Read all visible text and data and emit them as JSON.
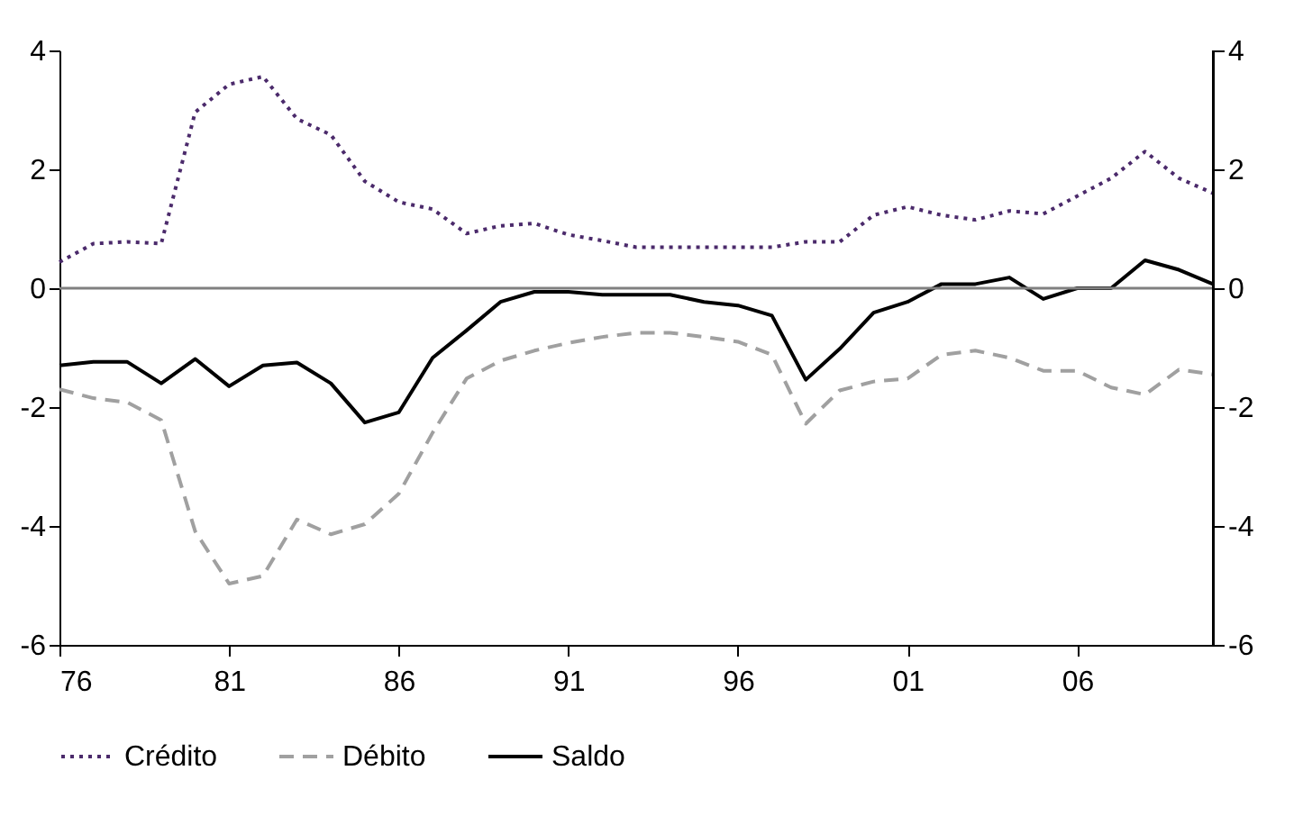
{
  "chart_data": {
    "type": "line",
    "x": [
      1976,
      1977,
      1978,
      1979,
      1980,
      1981,
      1982,
      1983,
      1984,
      1985,
      1986,
      1987,
      1988,
      1989,
      1990,
      1991,
      1992,
      1993,
      1994,
      1995,
      1996,
      1997,
      1998,
      1999,
      2000,
      2001,
      2002,
      2003,
      2004,
      2005,
      2006,
      2007,
      2008,
      2009,
      2010
    ],
    "series": [
      {
        "name": "Crédito",
        "color": "#4b2a6b",
        "line_style": "dotted",
        "values": [
          0.44,
          0.75,
          0.78,
          0.75,
          2.96,
          3.43,
          3.56,
          2.85,
          2.58,
          1.8,
          1.45,
          1.33,
          0.92,
          1.05,
          1.09,
          0.9,
          0.8,
          0.69,
          0.69,
          0.69,
          0.69,
          0.69,
          0.78,
          0.78,
          1.23,
          1.37,
          1.23,
          1.15,
          1.3,
          1.25,
          1.55,
          1.85,
          2.3,
          1.85,
          1.6
        ]
      },
      {
        "name": "Débito",
        "color": "#a0a0a0",
        "line_style": "dashed",
        "values": [
          -1.7,
          -1.85,
          -1.92,
          -2.22,
          -4.09,
          -4.97,
          -4.84,
          -3.89,
          -4.14,
          -3.97,
          -3.46,
          -2.43,
          -1.52,
          -1.22,
          -1.05,
          -0.92,
          -0.82,
          -0.75,
          -0.75,
          -0.82,
          -0.9,
          -1.12,
          -2.28,
          -1.72,
          -1.57,
          -1.52,
          -1.12,
          -1.05,
          -1.17,
          -1.39,
          -1.39,
          -1.67,
          -1.79,
          -1.37,
          -1.45
        ]
      },
      {
        "name": "Saldo",
        "color": "#000000",
        "line_style": "solid",
        "values": [
          -1.3,
          -1.24,
          -1.24,
          -1.6,
          -1.19,
          -1.65,
          -1.3,
          -1.25,
          -1.6,
          -2.26,
          -2.09,
          -1.17,
          -0.71,
          -0.23,
          -0.06,
          -0.06,
          -0.11,
          -0.11,
          -0.11,
          -0.23,
          -0.29,
          -0.46,
          -1.54,
          -1.02,
          -0.41,
          -0.23,
          0.07,
          0.07,
          0.18,
          -0.18,
          0,
          0,
          0.47,
          0.31,
          0.07
        ]
      }
    ],
    "xlim": [
      1976,
      2010
    ],
    "xticks": [
      {
        "value": 1976,
        "label": "76"
      },
      {
        "value": 1981,
        "label": "81"
      },
      {
        "value": 1986,
        "label": "86"
      },
      {
        "value": 1991,
        "label": "91"
      },
      {
        "value": 1996,
        "label": "96"
      },
      {
        "value": 2001,
        "label": "01"
      },
      {
        "value": 2006,
        "label": "06"
      }
    ],
    "ylim": [
      -6,
      4
    ],
    "yticks": [
      -6,
      -4,
      -2,
      0,
      2,
      4
    ],
    "y2lim": [
      -6,
      4
    ],
    "y2ticks": [
      -6,
      -4,
      -2,
      0,
      2,
      4
    ],
    "ref_lines": [
      {
        "axis": "y",
        "value": 0,
        "color": "#808080"
      }
    ],
    "grid": false,
    "legend": "bottom",
    "marker": "none"
  }
}
